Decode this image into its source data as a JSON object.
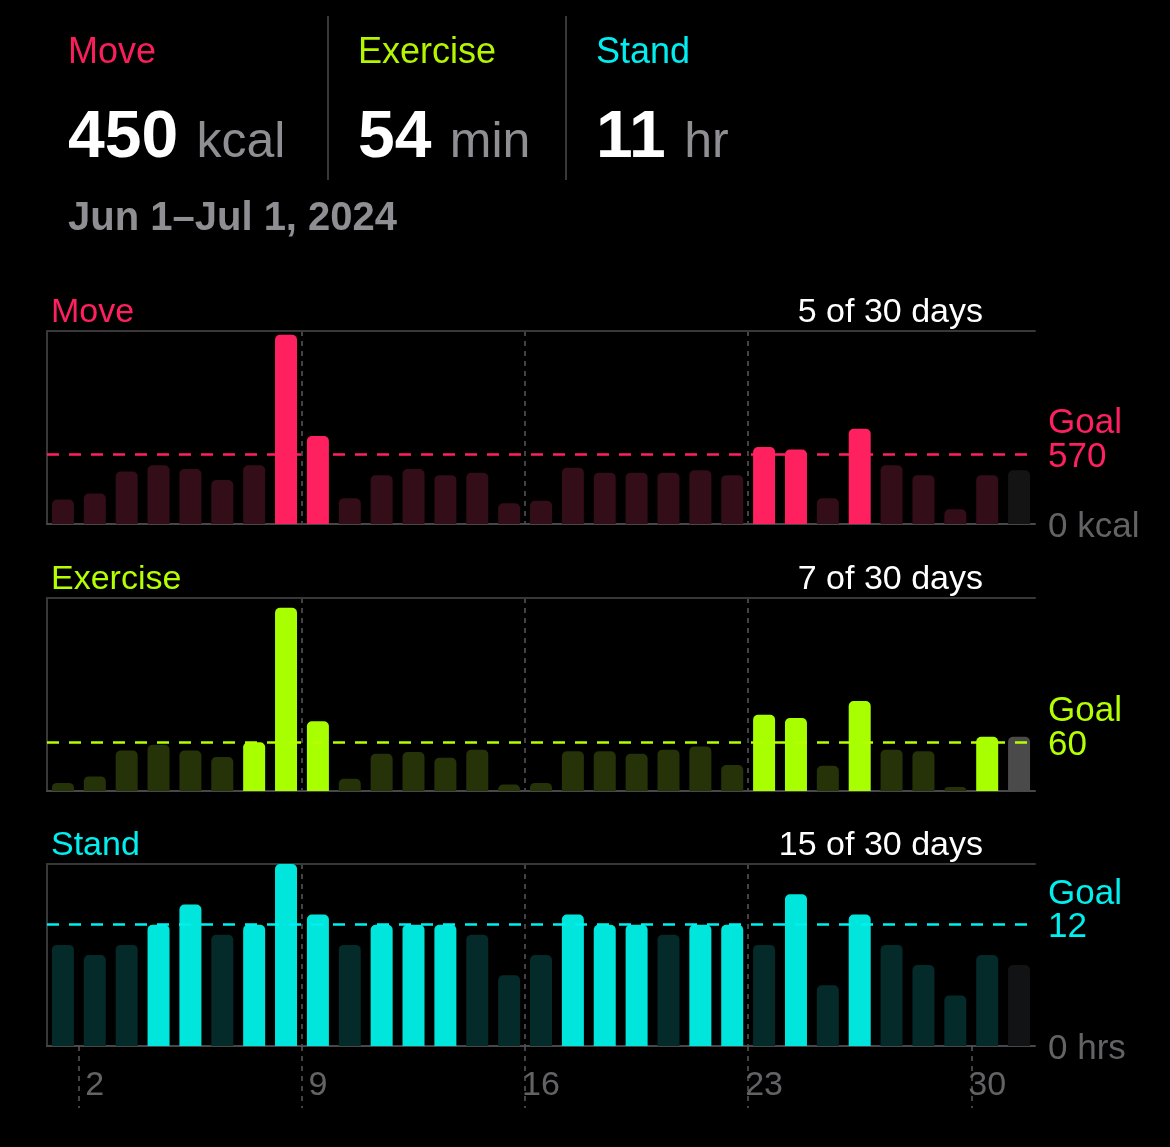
{
  "chart_data": [
    {
      "type": "other",
      "categories": [
        "Move",
        "Exercise",
        "Stand"
      ],
      "values": [
        450,
        54,
        11
      ],
      "value_labels": [
        "450 kcal",
        "54 min",
        "11 hr"
      ],
      "colors": [
        "#fa1e5a",
        "#b4f500",
        "#00eef0"
      ],
      "subtitle": "Jun 1–Jul 1, 2024"
    },
    {
      "type": "bar",
      "title": "Move",
      "subtitle": "5 of 30 days",
      "categories": [
        null,
        "2",
        null,
        null,
        null,
        null,
        null,
        null,
        "9",
        null,
        null,
        null,
        null,
        null,
        null,
        "16",
        null,
        null,
        null,
        null,
        null,
        null,
        "23",
        null,
        null,
        null,
        null,
        null,
        null,
        "30",
        null
      ],
      "values": [
        200,
        250,
        430,
        480,
        450,
        360,
        480,
        1550,
        720,
        210,
        400,
        450,
        400,
        420,
        170,
        190,
        460,
        420,
        420,
        420,
        440,
        400,
        630,
        610,
        210,
        780,
        480,
        400,
        120,
        400,
        440
      ],
      "colors": [
        "#330d18",
        "#330d18",
        "#330d18",
        "#330d18",
        "#330d18",
        "#330d18",
        "#330d18",
        "#ff2060",
        "#ff2060",
        "#330d18",
        "#330d18",
        "#330d18",
        "#330d18",
        "#330d18",
        "#330d18",
        "#330d18",
        "#330d18",
        "#330d18",
        "#330d18",
        "#330d18",
        "#330d18",
        "#330d18",
        "#ff2060",
        "#ff2060",
        "#330d18",
        "#ff2060",
        "#330d18",
        "#330d18",
        "#330d18",
        "#330d18",
        "#141414"
      ],
      "ylim": [
        0,
        1580
      ],
      "yticks": [
        {
          "value": 0,
          "label": "0 kcal"
        },
        570
      ],
      "ref_lines": [
        {
          "axis": "y",
          "value": 570,
          "label": "Goal",
          "color": "#ff2060",
          "line_style": "dashed"
        }
      ],
      "grid": "x",
      "tick_labels": "y"
    },
    {
      "type": "bar",
      "title": "Exercise",
      "subtitle": "7 of 30 days",
      "categories": [
        null,
        "2",
        null,
        null,
        null,
        null,
        null,
        null,
        "9",
        null,
        null,
        null,
        null,
        null,
        null,
        "16",
        null,
        null,
        null,
        null,
        null,
        null,
        "23",
        null,
        null,
        null,
        null,
        null,
        null,
        "30",
        null
      ],
      "values": [
        10,
        18,
        50,
        57,
        50,
        42,
        60,
        226,
        86,
        15,
        46,
        48,
        41,
        51,
        8,
        10,
        49,
        49,
        46,
        51,
        55,
        32,
        94,
        90,
        31,
        111,
        51,
        49,
        5,
        67,
        67
      ],
      "colors": [
        "#263308",
        "#263308",
        "#263308",
        "#263308",
        "#263308",
        "#263308",
        "#a8ff00",
        "#a8ff00",
        "#a8ff00",
        "#263308",
        "#263308",
        "#263308",
        "#263308",
        "#263308",
        "#263308",
        "#263308",
        "#263308",
        "#263308",
        "#263308",
        "#263308",
        "#263308",
        "#263308",
        "#a8ff00",
        "#a8ff00",
        "#263308",
        "#a8ff00",
        "#263308",
        "#263308",
        "#263308",
        "#a8ff00",
        "#4a4a4a"
      ],
      "ylim": [
        0,
        238
      ],
      "yticks": [
        60
      ],
      "ref_lines": [
        {
          "axis": "y",
          "value": 60,
          "label": "Goal",
          "color": "#b4ff00",
          "line_style": "dashed"
        }
      ],
      "grid": "x",
      "tick_labels": "y"
    },
    {
      "type": "bar",
      "title": "Stand",
      "subtitle": "15 of 30 days",
      "categories": [
        null,
        "2",
        null,
        null,
        null,
        null,
        null,
        null,
        "9",
        null,
        null,
        null,
        null,
        null,
        null,
        "16",
        null,
        null,
        null,
        null,
        null,
        null,
        "23",
        null,
        null,
        null,
        null,
        null,
        null,
        "30",
        null
      ],
      "values": [
        10,
        9,
        10,
        12,
        14,
        11,
        12,
        18,
        13,
        10,
        12,
        12,
        12,
        11,
        7,
        9,
        13,
        12,
        12,
        11,
        12,
        12,
        10,
        15,
        6,
        13,
        10,
        8,
        5,
        9,
        8
      ],
      "colors": [
        "#042a2a",
        "#042a2a",
        "#042a2a",
        "#00e6dc",
        "#00e6dc",
        "#042a2a",
        "#00e6dc",
        "#00e6dc",
        "#00e6dc",
        "#042a2a",
        "#00e6dc",
        "#00e6dc",
        "#00e6dc",
        "#042a2a",
        "#042a2a",
        "#042a2a",
        "#00e6dc",
        "#00e6dc",
        "#00e6dc",
        "#042a2a",
        "#00e6dc",
        "#00e6dc",
        "#042a2a",
        "#00e6dc",
        "#042a2a",
        "#00e6dc",
        "#042a2a",
        "#042a2a",
        "#042a2a",
        "#042a2a",
        "#121314"
      ],
      "ylim": [
        0,
        18
      ],
      "yticks": [
        {
          "value": 0,
          "label": "0 hrs"
        },
        12
      ],
      "ref_lines": [
        {
          "axis": "y",
          "value": 12,
          "label": "Goal",
          "color": "#00f0f0",
          "line_style": "dashed"
        }
      ],
      "grid": "x"
    }
  ]
}
